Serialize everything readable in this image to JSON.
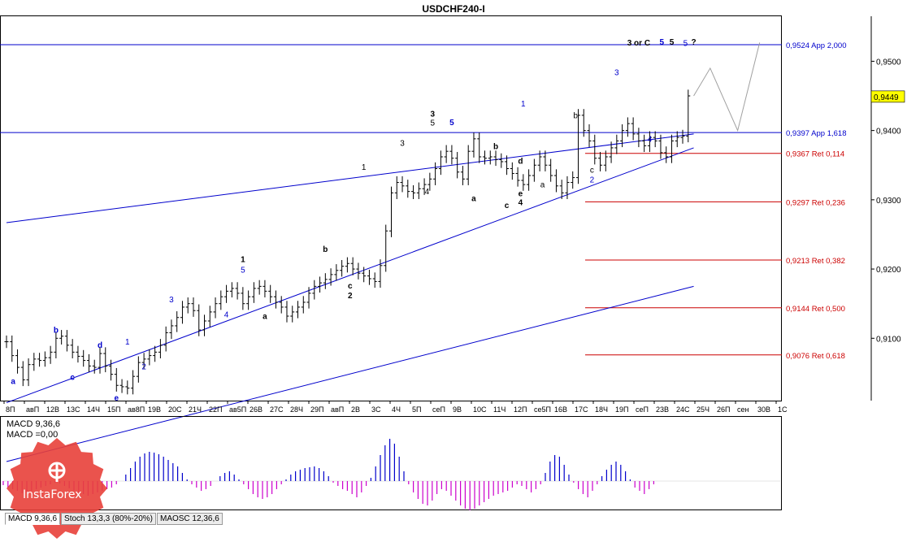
{
  "window_title": "USDCHF240-I",
  "chart_data": [
    {
      "type": "line",
      "title": "USDCHF240-I",
      "ylim": [
        0.901,
        0.9565
      ],
      "y_ticks": [
        0.95,
        0.94,
        0.93,
        0.92,
        0.91
      ],
      "y_tick_labels": [
        "0,9500",
        "0,9400",
        "0,9300",
        "0,9200",
        "0,9100"
      ],
      "current_price": 0.9449,
      "current_price_label": "0,9449",
      "x_ticks": [
        "8П",
        "авП",
        "12В",
        "13С",
        "14Ч",
        "15П",
        "ав8П",
        "19В",
        "20С",
        "21Ч",
        "22П",
        "ав5П",
        "26В",
        "27С",
        "28Ч",
        "29П",
        "авП",
        "2В",
        "3С",
        "4Ч",
        "5П",
        "сеП",
        "9В",
        "10С",
        "11Ч",
        "12П",
        "се5П",
        "16В",
        "17С",
        "18Ч",
        "19П",
        "сеП",
        "23В",
        "24С",
        "25Ч",
        "26П",
        "сен",
        "30В",
        "1С"
      ],
      "close_series": [
        0.9095,
        0.9075,
        0.9058,
        0.904,
        0.9062,
        0.907,
        0.9068,
        0.9072,
        0.908,
        0.91,
        0.9103,
        0.909,
        0.908,
        0.9074,
        0.9068,
        0.906,
        0.9058,
        0.9078,
        0.906,
        0.9048,
        0.9032,
        0.903,
        0.9028,
        0.9045,
        0.9065,
        0.907,
        0.9075,
        0.908,
        0.909,
        0.9108,
        0.9118,
        0.913,
        0.9145,
        0.915,
        0.914,
        0.9112,
        0.9125,
        0.9138,
        0.915,
        0.916,
        0.9168,
        0.9172,
        0.9165,
        0.915,
        0.916,
        0.9172,
        0.9175,
        0.9168,
        0.916,
        0.9152,
        0.9145,
        0.9132,
        0.9138,
        0.9145,
        0.9152,
        0.9165,
        0.9175,
        0.918,
        0.9185,
        0.9192,
        0.9198,
        0.9204,
        0.9208,
        0.92,
        0.9194,
        0.919,
        0.9186,
        0.9182,
        0.9205,
        0.9255,
        0.931,
        0.9325,
        0.932,
        0.9312,
        0.931,
        0.9316,
        0.9322,
        0.933,
        0.9345,
        0.9362,
        0.937,
        0.936,
        0.934,
        0.933,
        0.937,
        0.9388,
        0.9362,
        0.936,
        0.9362,
        0.9358,
        0.9355,
        0.9345,
        0.9338,
        0.9328,
        0.9322,
        0.9335,
        0.935,
        0.9362,
        0.935,
        0.9335,
        0.932,
        0.931,
        0.9325,
        0.9332,
        0.9422,
        0.94,
        0.9385,
        0.936,
        0.935,
        0.9362,
        0.9375,
        0.9385,
        0.94,
        0.941,
        0.9395,
        0.9385,
        0.9378,
        0.939,
        0.9385,
        0.9368,
        0.9362,
        0.9385,
        0.939,
        0.9392,
        0.945
      ],
      "levels": [
        {
          "value": 0.9524,
          "label": "0,9524 App 2,000",
          "color": "#0000cc"
        },
        {
          "value": 0.9397,
          "label": "0,9397 App 1,618",
          "color": "#0000cc"
        },
        {
          "value": 0.9367,
          "label": "0,9367 Ret 0,114",
          "color": "#cc0000"
        },
        {
          "value": 0.9297,
          "label": "0,9297 Ret 0,236",
          "color": "#cc0000"
        },
        {
          "value": 0.9213,
          "label": "0,9213 Ret 0,382",
          "color": "#cc0000"
        },
        {
          "value": 0.9144,
          "label": "0,9144 Ret 0,500",
          "color": "#cc0000"
        },
        {
          "value": 0.9076,
          "label": "0,9076 Ret 0,618",
          "color": "#cc0000"
        }
      ],
      "trend_channels": [
        {
          "x": [
            0,
            125
          ],
          "y": [
            0.9267,
            0.9395
          ]
        },
        {
          "x": [
            0,
            125
          ],
          "y": [
            0.9007,
            0.9375
          ]
        },
        {
          "x": [
            0,
            125
          ],
          "y": [
            0.8922,
            0.9175
          ]
        }
      ],
      "forecast_path": {
        "x": [
          125,
          128,
          133,
          137
        ],
        "y": [
          0.945,
          0.949,
          0.94,
          0.9527
        ]
      },
      "wave_labels": [
        {
          "text": "a",
          "x": 1.2,
          "y": 0.9034,
          "color": "#0000cc",
          "bold": true
        },
        {
          "text": "b",
          "x": 9,
          "y": 0.9108,
          "color": "#0000cc",
          "bold": true
        },
        {
          "text": "c",
          "x": 12,
          "y": 0.904,
          "color": "#0000cc",
          "bold": true
        },
        {
          "text": "d",
          "x": 17,
          "y": 0.9086,
          "color": "#0000cc",
          "bold": true
        },
        {
          "text": "e",
          "x": 20,
          "y": 0.901,
          "color": "#0000cc",
          "bold": true
        },
        {
          "text": "1",
          "x": 22,
          "y": 0.9091,
          "color": "#0000cc",
          "bold": false
        },
        {
          "text": "2",
          "x": 25,
          "y": 0.9055,
          "color": "#0000cc",
          "bold": false
        },
        {
          "text": "3",
          "x": 30,
          "y": 0.9152,
          "color": "#0000cc",
          "bold": false
        },
        {
          "text": "4",
          "x": 40,
          "y": 0.913,
          "color": "#0000cc",
          "bold": false
        },
        {
          "text": "5",
          "x": 43,
          "y": 0.9195,
          "color": "#0000cc",
          "bold": false
        },
        {
          "text": "1",
          "x": 43,
          "y": 0.921,
          "color": "#000000",
          "bold": true
        },
        {
          "text": "a",
          "x": 47,
          "y": 0.9128,
          "color": "#000000",
          "bold": true
        },
        {
          "text": "b",
          "x": 58,
          "y": 0.9225,
          "color": "#000000",
          "bold": true
        },
        {
          "text": "c",
          "x": 62.5,
          "y": 0.9172,
          "color": "#000000",
          "bold": true
        },
        {
          "text": "2",
          "x": 62.5,
          "y": 0.9158,
          "color": "#000000",
          "bold": true
        },
        {
          "text": "1",
          "x": 65,
          "y": 0.9343,
          "color": "#000000",
          "bold": false
        },
        {
          "text": "3",
          "x": 72,
          "y": 0.9378,
          "color": "#000000",
          "bold": false
        },
        {
          "text": "4",
          "x": 76.5,
          "y": 0.9308,
          "color": "#000000",
          "bold": false
        },
        {
          "text": "3",
          "x": 77.5,
          "y": 0.942,
          "color": "#000000",
          "bold": true
        },
        {
          "text": "5",
          "x": 77.5,
          "y": 0.9407,
          "color": "#000000",
          "bold": false
        },
        {
          "text": "5",
          "x": 81,
          "y": 0.9408,
          "color": "#0000cc",
          "bold": true
        },
        {
          "text": "a",
          "x": 85,
          "y": 0.9298,
          "color": "#000000",
          "bold": true
        },
        {
          "text": "b",
          "x": 89,
          "y": 0.9373,
          "color": "#000000",
          "bold": true
        },
        {
          "text": "d",
          "x": 93.5,
          "y": 0.9352,
          "color": "#000000",
          "bold": true
        },
        {
          "text": "e",
          "x": 93.5,
          "y": 0.9305,
          "color": "#000000",
          "bold": true
        },
        {
          "text": "c",
          "x": 91,
          "y": 0.9288,
          "color": "#000000",
          "bold": true
        },
        {
          "text": "4",
          "x": 93.5,
          "y": 0.9292,
          "color": "#000000",
          "bold": true
        },
        {
          "text": "1",
          "x": 94,
          "y": 0.9435,
          "color": "#0000cc",
          "bold": false
        },
        {
          "text": "a",
          "x": 97.5,
          "y": 0.9318,
          "color": "#000000",
          "bold": false
        },
        {
          "text": "b",
          "x": 103.5,
          "y": 0.9418,
          "color": "#000000",
          "bold": false
        },
        {
          "text": "c",
          "x": 106.5,
          "y": 0.9339,
          "color": "#000000",
          "bold": false
        },
        {
          "text": "2",
          "x": 106.5,
          "y": 0.9325,
          "color": "#0000cc",
          "bold": false
        },
        {
          "text": "3",
          "x": 111,
          "y": 0.948,
          "color": "#0000cc",
          "bold": false
        },
        {
          "text": "4",
          "x": 117,
          "y": 0.9384,
          "color": "#0000cc",
          "bold": false
        },
        {
          "text": "3 or C",
          "x": 115,
          "y": 0.9523,
          "color": "#000000",
          "bold": true
        },
        {
          "text": "5",
          "x": 119.2,
          "y": 0.9524,
          "color": "#0000cc",
          "bold": true
        },
        {
          "text": "5",
          "x": 121,
          "y": 0.9524,
          "color": "#000000",
          "bold": true
        },
        {
          "text": "5",
          "x": 123.5,
          "y": 0.9522,
          "color": "#0000cc",
          "bold": false
        },
        {
          "text": "?",
          "x": 125,
          "y": 0.9524,
          "color": "#000000",
          "bold": true
        }
      ]
    },
    {
      "type": "bar",
      "title": "MACD 9,36,6",
      "subtitle": "MACD =0,00",
      "positive_color": "#0000cc",
      "negative_color": "#cc00cc",
      "values": [
        -5,
        -8,
        -10,
        -12,
        -15,
        -14,
        -12,
        -10,
        -8,
        -6,
        -4,
        -2,
        -3,
        -6,
        -9,
        -12,
        -14,
        -16,
        -18,
        -16,
        -14,
        -12,
        -10,
        -8,
        -4,
        0,
        8,
        16,
        24,
        30,
        34,
        36,
        35,
        33,
        30,
        26,
        22,
        18,
        10,
        2,
        -4,
        -8,
        -12,
        -10,
        -6,
        0,
        6,
        10,
        12,
        8,
        2,
        -4,
        -10,
        -16,
        -20,
        -22,
        -20,
        -16,
        -10,
        -4,
        2,
        8,
        12,
        14,
        16,
        17,
        18,
        16,
        12,
        6,
        -2,
        -6,
        -10,
        -12,
        -16,
        -20,
        -14,
        -6,
        4,
        18,
        32,
        44,
        52,
        46,
        30,
        12,
        -4,
        -14,
        -22,
        -28,
        -30,
        -24,
        -16,
        -10,
        -12,
        -18,
        -24,
        -30,
        -34,
        -36,
        -34,
        -30,
        -26,
        -22,
        -18,
        -16,
        -14,
        -12,
        -8,
        -4,
        -6,
        -10,
        -14,
        -10,
        -4,
        10,
        24,
        32,
        30,
        20,
        8,
        -2,
        -10,
        -16,
        -20,
        -12,
        -4,
        6,
        14,
        20,
        24,
        20,
        12,
        2,
        -8,
        -12,
        -16,
        -10,
        -4
      ]
    }
  ],
  "indicator_tabs": [
    {
      "label": "MACD 9,36,6",
      "active": true
    },
    {
      "label": "Stoch 13,3,3 (80%-20%)",
      "active": false
    },
    {
      "label": "MAOSC 12,36,6",
      "active": false
    }
  ],
  "watermark": {
    "brand": "InstaForex",
    "color": "#e8403a"
  }
}
